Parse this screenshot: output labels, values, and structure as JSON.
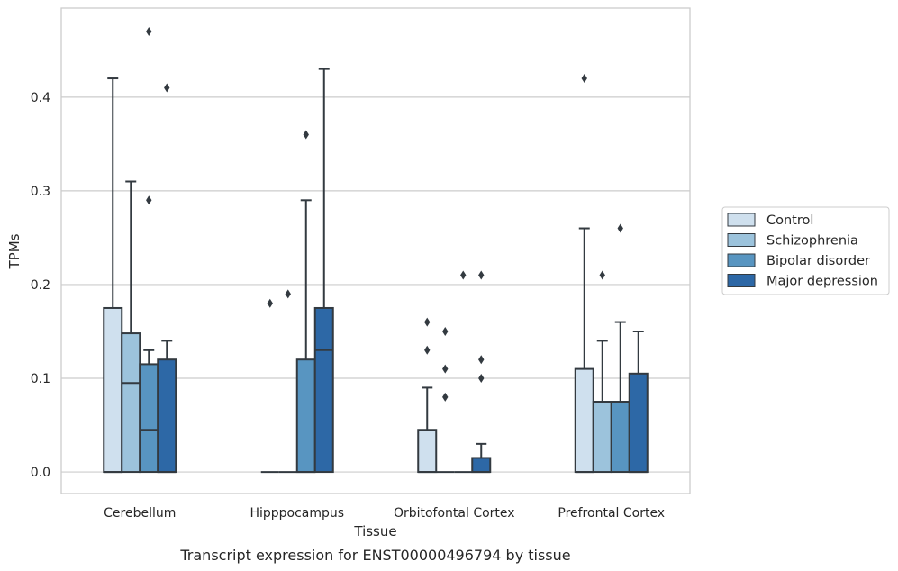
{
  "chart_data": {
    "type": "box",
    "caption": "Transcript expression for ENST00000496794 by tissue",
    "xlabel": "Tissue",
    "ylabel": "TPMs",
    "ylim": [
      -0.023,
      0.495
    ],
    "yticks": [
      0.0,
      0.1,
      0.2,
      0.3,
      0.4
    ],
    "ytick_labels": [
      "0.0",
      "0.1",
      "0.2",
      "0.3",
      "0.4"
    ],
    "grid": true,
    "legend_position": "right",
    "categories": [
      "Cerebellum",
      "Hipppocampus",
      "Orbitofontal Cortex",
      "Prefrontal Cortex"
    ],
    "series": [
      {
        "name": "Control",
        "color": "#cfe0ee",
        "boxes": [
          {
            "low": 0,
            "q1": 0,
            "median": 0,
            "q3": 0.175,
            "high": 0.42,
            "outliers": []
          },
          {
            "low": 0,
            "q1": 0,
            "median": 0,
            "q3": 0,
            "high": 0,
            "outliers": [
              0.18
            ]
          },
          {
            "low": 0,
            "q1": 0,
            "median": 0,
            "q3": 0.045,
            "high": 0.09,
            "outliers": [
              0.13,
              0.16
            ]
          },
          {
            "low": 0,
            "q1": 0,
            "median": 0,
            "q3": 0.11,
            "high": 0.26,
            "outliers": [
              0.42
            ]
          }
        ]
      },
      {
        "name": "Schizophrenia",
        "color": "#9cc3dc",
        "boxes": [
          {
            "low": 0,
            "q1": 0,
            "median": 0.095,
            "q3": 0.148,
            "high": 0.31,
            "outliers": []
          },
          {
            "low": 0,
            "q1": 0,
            "median": 0,
            "q3": 0,
            "high": 0,
            "outliers": [
              0.19
            ]
          },
          {
            "low": 0,
            "q1": 0,
            "median": 0,
            "q3": 0,
            "high": 0,
            "outliers": [
              0.08,
              0.11,
              0.15
            ]
          },
          {
            "low": 0,
            "q1": 0,
            "median": 0.075,
            "q3": 0.075,
            "high": 0.14,
            "outliers": [
              0.21
            ]
          }
        ]
      },
      {
        "name": "Bipolar disorder",
        "color": "#5895c1",
        "boxes": [
          {
            "low": 0,
            "q1": 0,
            "median": 0.045,
            "q3": 0.115,
            "high": 0.13,
            "outliers": [
              0.29,
              0.47
            ]
          },
          {
            "low": 0,
            "q1": 0,
            "median": 0,
            "q3": 0.12,
            "high": 0.29,
            "outliers": [
              0.36
            ]
          },
          {
            "low": 0,
            "q1": 0,
            "median": 0,
            "q3": 0,
            "high": 0,
            "outliers": [
              0.21
            ]
          },
          {
            "low": 0,
            "q1": 0,
            "median": 0.075,
            "q3": 0.075,
            "high": 0.16,
            "outliers": [
              0.26
            ]
          }
        ]
      },
      {
        "name": "Major depression",
        "color": "#2d68a6",
        "boxes": [
          {
            "low": 0,
            "q1": 0,
            "median": 0,
            "q3": 0.12,
            "high": 0.14,
            "outliers": [
              0.41
            ]
          },
          {
            "low": 0,
            "q1": 0,
            "median": 0.13,
            "q3": 0.175,
            "high": 0.43,
            "outliers": []
          },
          {
            "low": 0,
            "q1": 0,
            "median": 0,
            "q3": 0.015,
            "high": 0.03,
            "outliers": [
              0.1,
              0.12,
              0.21
            ]
          },
          {
            "low": 0,
            "q1": 0,
            "median": 0,
            "q3": 0.105,
            "high": 0.15,
            "outliers": []
          }
        ]
      }
    ]
  }
}
